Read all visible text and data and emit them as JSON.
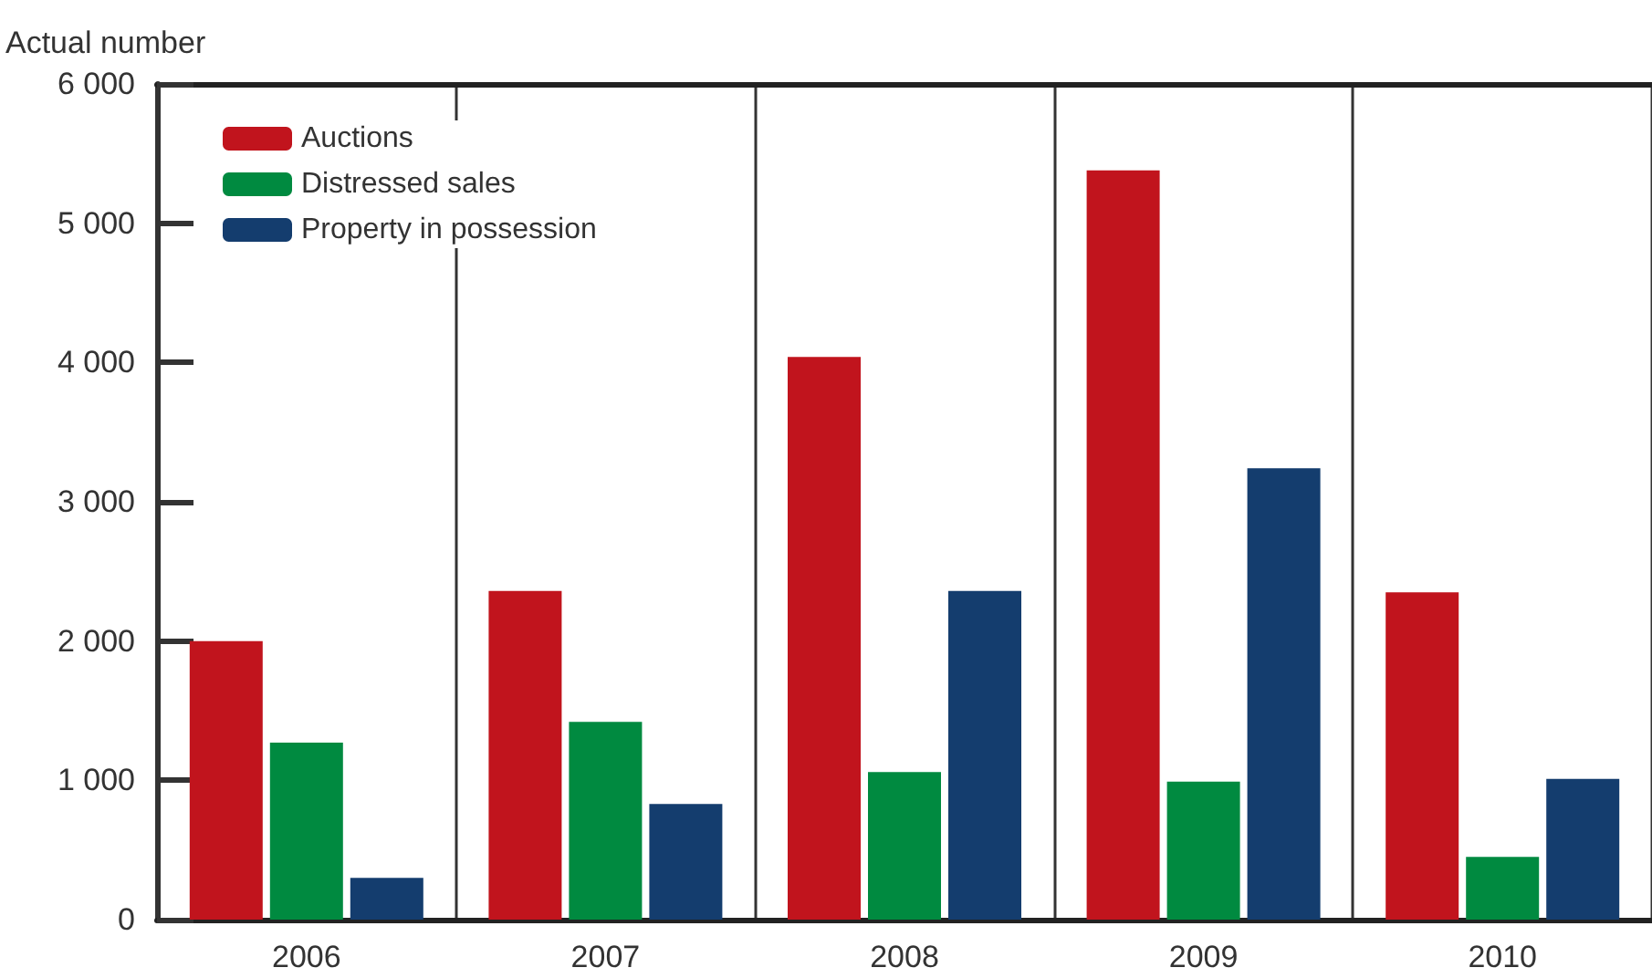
{
  "chart_data": {
    "type": "bar",
    "ylabel": "Actual number",
    "categories": [
      "2006",
      "2007",
      "2008",
      "2009",
      "2010"
    ],
    "series": [
      {
        "name": "Auctions",
        "color": "#c1141d",
        "values": [
          2000,
          2360,
          4040,
          5380,
          2350
        ]
      },
      {
        "name": "Distressed sales",
        "color": "#008a40",
        "values": [
          1270,
          1420,
          1060,
          990,
          450
        ]
      },
      {
        "name": "Property in possession",
        "color": "#143d6e",
        "values": [
          300,
          830,
          2360,
          3240,
          1010
        ]
      }
    ],
    "ylim": [
      0,
      6000
    ],
    "yticks": [
      0,
      {
        "value": 1000,
        "label": "1 000"
      },
      {
        "value": 2000,
        "label": "2 000"
      },
      {
        "value": 3000,
        "label": "3 000"
      },
      {
        "value": 4000,
        "label": "4 000"
      },
      {
        "value": 5000,
        "label": "5 000"
      },
      {
        "value": 6000,
        "label": "6 000"
      }
    ],
    "grid": "x",
    "legend": "top left"
  }
}
